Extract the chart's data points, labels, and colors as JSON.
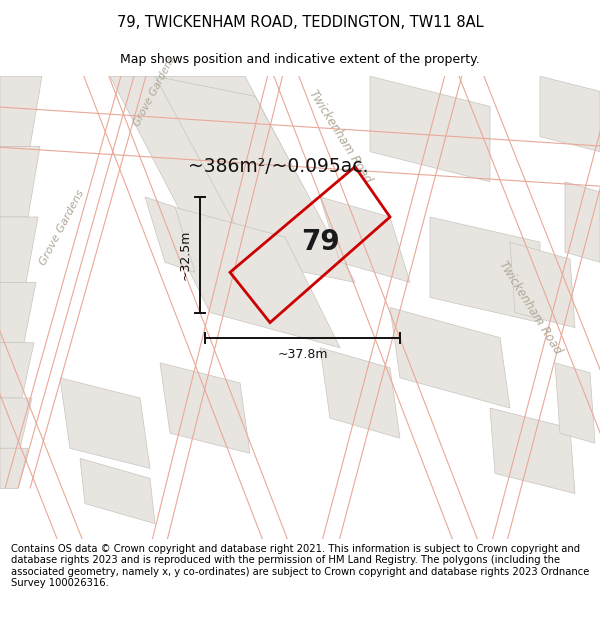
{
  "title": "79, TWICKENHAM ROAD, TEDDINGTON, TW11 8AL",
  "subtitle": "Map shows position and indicative extent of the property.",
  "footer": "Contains OS data © Crown copyright and database right 2021. This information is subject to Crown copyright and database rights 2023 and is reproduced with the permission of HM Land Registry. The polygons (including the associated geometry, namely x, y co-ordinates) are subject to Crown copyright and database rights 2023 Ordnance Survey 100026316.",
  "area_label": "~386m²/~0.095ac.",
  "property_number": "79",
  "dim_height": "~32.5m",
  "dim_width": "~37.8m",
  "map_bg": "#f7f5f2",
  "building_fc": "#e8e5e0",
  "building_ec": "#c8c5c0",
  "road_line_color": "#e8a898",
  "road_line_lw": 0.8,
  "property_color": "#cc0000",
  "property_lw": 2.0,
  "street_label_color": "#b0a898",
  "title_fontsize": 10.5,
  "subtitle_fontsize": 9.0,
  "footer_fontsize": 7.2,
  "dim_label_fontsize": 9.0,
  "area_fontsize": 13.5,
  "number_fontsize": 20
}
